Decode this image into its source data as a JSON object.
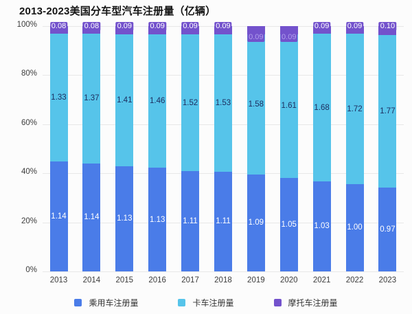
{
  "title": "2013-2023美国分车型汽车注册量（亿辆）",
  "y_axis": {
    "ticks": [
      "100%",
      "80%",
      "60%",
      "40%",
      "20%",
      "0%"
    ]
  },
  "colors": {
    "background": "#fcfcfc",
    "gridline": "#e8e8e8",
    "title_text": "#141414",
    "axis_text": "#3c3c3c",
    "passenger_blue": "#4a7ce8",
    "truck_cyan": "#56c4ea",
    "motorcycle_purple": "#7352cc",
    "truck_label_text": "#1c2c5e",
    "passenger_label_text": "#ffffff",
    "motorcycle_label_text": "#ffffff",
    "motorcycle_label_text_inside": "#b2a0ec"
  },
  "chart_data": {
    "type": "bar",
    "stacked": true,
    "percent_stacked": true,
    "title": "2013-2023美国分车型汽车注册量（亿辆）",
    "xlabel": "",
    "ylabel": "",
    "ylim": [
      "0%",
      "100%"
    ],
    "grid": true,
    "legend_position": "bottom",
    "categories": [
      2013,
      2014,
      2015,
      2016,
      2017,
      2018,
      2019,
      2020,
      2021,
      2022,
      2023
    ],
    "series": [
      {
        "name": "乘用车注册量",
        "color": "#4a7ce8",
        "values": [
          1.14,
          1.14,
          1.13,
          1.13,
          1.11,
          1.11,
          1.09,
          1.05,
          1.03,
          1.0,
          0.97
        ]
      },
      {
        "name": "卡车注册量",
        "color": "#56c4ea",
        "values": [
          1.33,
          1.37,
          1.41,
          1.46,
          1.52,
          1.53,
          1.58,
          1.61,
          1.68,
          1.72,
          1.77
        ]
      },
      {
        "name": "摩托车注册量",
        "color": "#7352cc",
        "values": [
          0.08,
          0.08,
          0.09,
          0.09,
          0.09,
          0.09,
          0.09,
          0.09,
          0.09,
          0.09,
          0.1
        ]
      }
    ],
    "moto_label_inside_years": [
      2019,
      2020
    ]
  }
}
